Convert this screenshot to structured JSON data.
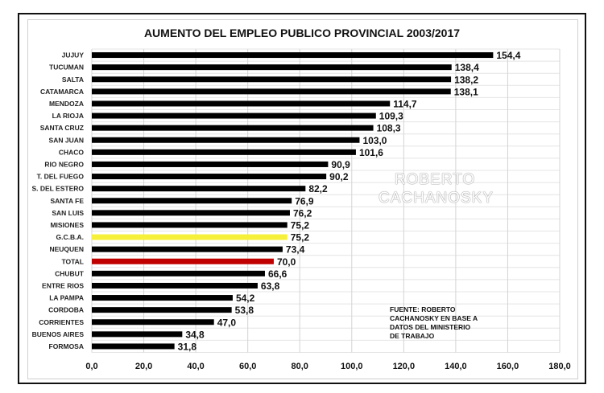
{
  "chart_data": {
    "type": "bar",
    "orientation": "horizontal",
    "title": "AUMENTO  DEL EMPLEO PUBLICO PROVINCIAL 2003/2017",
    "categories": [
      "JUJUY",
      "TUCUMAN",
      "SALTA",
      "CATAMARCA",
      "MENDOZA",
      "LA RIOJA",
      "SANTA CRUZ",
      "SAN JUAN",
      "CHACO",
      "RIO NEGRO",
      "T. DEL FUEGO",
      "S. DEL ESTERO",
      "SANTA FE",
      "SAN LUIS",
      "MISIONES",
      "G.C.B.A.",
      "NEUQUEN",
      "TOTAL",
      "CHUBUT",
      "ENTRE RIOS",
      "LA PAMPA",
      "CORDOBA",
      "CORRIENTES",
      "BUENOS AIRES",
      "FORMOSA"
    ],
    "values": [
      154.4,
      138.4,
      138.2,
      138.1,
      114.7,
      109.3,
      108.3,
      103.0,
      101.6,
      90.9,
      90.2,
      82.2,
      76.9,
      76.2,
      75.2,
      75.2,
      73.4,
      70.0,
      66.6,
      63.8,
      54.2,
      53.8,
      47.0,
      34.8,
      31.8
    ],
    "value_labels": [
      "154,4",
      "138,4",
      "138,2",
      "138,1",
      "114,7",
      "109,3",
      "108,3",
      "103,0",
      "101,6",
      "90,9",
      "90,2",
      "82,2",
      "76,9",
      "76,2",
      "75,2",
      "75,2",
      "73,4",
      "70,0",
      "66,6",
      "63,8",
      "54,2",
      "53,8",
      "47,0",
      "34,8",
      "31,8"
    ],
    "bar_colors": {
      "default": "#000000",
      "G.C.B.A.": "#f7f03a",
      "TOTAL": "#c00000"
    },
    "xlim": [
      0,
      180
    ],
    "xticks": [
      "0,0",
      "20,0",
      "40,0",
      "60,0",
      "80,0",
      "100,0",
      "120,0",
      "140,0",
      "160,0",
      "180,0"
    ],
    "grid": true,
    "watermark": [
      "ROBERTO",
      "CACHANOSKY"
    ],
    "note": "FUENTE: ROBERTO\nCACHANOSKY EN BASE A\nDATOS DEL MINISTERIO\nDE TRABAJO"
  }
}
